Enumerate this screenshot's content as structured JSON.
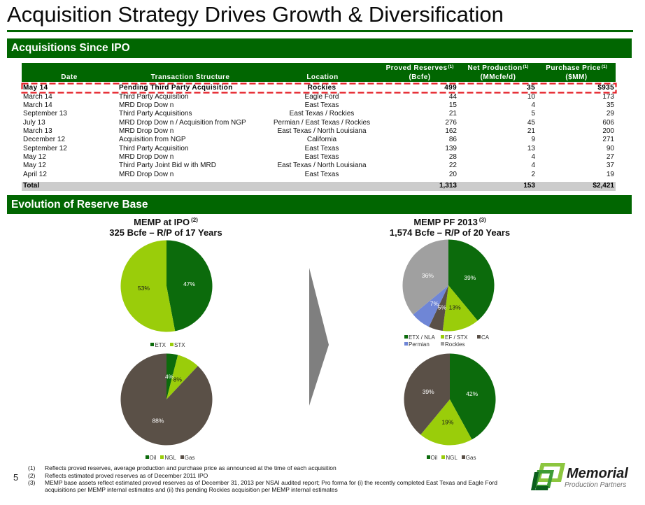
{
  "theme": {
    "primary_green": "#016601",
    "highlight_border": "#e41e26",
    "total_row_bg": "#cccccc",
    "arrow": "#7f7f7f"
  },
  "slide": {
    "title": "Acquisition Strategy Drives Growth & Diversification",
    "page_number": "5"
  },
  "acquisitions": {
    "section_title": "Acquisitions Since IPO",
    "columns": [
      {
        "line1": "",
        "sup": "",
        "line2": "Date"
      },
      {
        "line1": "",
        "sup": "",
        "line2": "Transaction Structure"
      },
      {
        "line1": "",
        "sup": "",
        "line2": "Location"
      },
      {
        "line1": "Proved Reserves",
        "sup": "(1)",
        "line2": "(Bcfe)"
      },
      {
        "line1": "Net Production",
        "sup": "(1)",
        "line2": "(MMcfe/d)"
      },
      {
        "line1": "Purchase Price",
        "sup": "(1)",
        "line2": "($MM)"
      }
    ],
    "rows": [
      {
        "date": "May 14",
        "structure": "Pending Third Party Acquisition",
        "location": "Rockies",
        "proved_reserves_bcfe": "499",
        "net_production_mmcfed": "35",
        "purchase_price_mm": "$935",
        "highlighted": true
      },
      {
        "date": "March 14",
        "structure": "Third Party Acquisition",
        "location": "Eagle Ford",
        "proved_reserves_bcfe": "44",
        "net_production_mmcfed": "10",
        "purchase_price_mm": "173"
      },
      {
        "date": "March 14",
        "structure": "MRD Drop Dow n",
        "location": "East Texas",
        "proved_reserves_bcfe": "15",
        "net_production_mmcfed": "4",
        "purchase_price_mm": "35"
      },
      {
        "date": "September 13",
        "structure": "Third Party Acquisitions",
        "location": "East Texas / Rockies",
        "proved_reserves_bcfe": "21",
        "net_production_mmcfed": "5",
        "purchase_price_mm": "29"
      },
      {
        "date": "July 13",
        "structure": "MRD Drop Dow n / Acquisition from NGP",
        "location": "Permian / East Texas / Rockies",
        "proved_reserves_bcfe": "276",
        "net_production_mmcfed": "45",
        "purchase_price_mm": "606"
      },
      {
        "date": "March 13",
        "structure": "MRD Drop Dow n",
        "location": "East Texas / North Louisiana",
        "proved_reserves_bcfe": "162",
        "net_production_mmcfed": "21",
        "purchase_price_mm": "200"
      },
      {
        "date": "December 12",
        "structure": "Acquisition from NGP",
        "location": "California",
        "proved_reserves_bcfe": "86",
        "net_production_mmcfed": "9",
        "purchase_price_mm": "271"
      },
      {
        "date": "September 12",
        "structure": "Third Party Acquisition",
        "location": "East Texas",
        "proved_reserves_bcfe": "139",
        "net_production_mmcfed": "13",
        "purchase_price_mm": "90"
      },
      {
        "date": "May 12",
        "structure": "MRD Drop Dow n",
        "location": "East Texas",
        "proved_reserves_bcfe": "28",
        "net_production_mmcfed": "4",
        "purchase_price_mm": "27"
      },
      {
        "date": "May 12",
        "structure": "Third Party Joint Bid w ith MRD",
        "location": "East Texas / North Louisiana",
        "proved_reserves_bcfe": "22",
        "net_production_mmcfed": "4",
        "purchase_price_mm": "37"
      },
      {
        "date": "April 12",
        "structure": "MRD Drop Dow n",
        "location": "East Texas",
        "proved_reserves_bcfe": "20",
        "net_production_mmcfed": "2",
        "purchase_price_mm": "19"
      }
    ],
    "total": {
      "label": "Total",
      "proved_reserves_bcfe": "1,313",
      "net_production_mmcfed": "153",
      "purchase_price_mm": "$2,421"
    }
  },
  "reserve_base": {
    "section_title": "Evolution of Reserve Base",
    "panels": [
      {
        "title": "MEMP at IPO",
        "sup": "(2)",
        "subtitle": "325 Bcfe – R/P of 17 Years"
      },
      {
        "title": "MEMP PF 2013",
        "sup": "(3)",
        "subtitle": "1,574 Bcfe – R/P of 20 Years"
      }
    ]
  },
  "chart_data": [
    {
      "type": "pie",
      "title": "MEMP at IPO (2)",
      "subtitle": "325 Bcfe – R/P of 17 Years",
      "categories": [
        "ETX",
        "STX"
      ],
      "values": [
        47,
        53
      ],
      "labels": [
        "47%",
        "53%"
      ],
      "colors": [
        "#0c6b0c",
        "#9acd0a"
      ],
      "label_colors": [
        "#ffffff",
        "#1a1a1a"
      ],
      "legend": "bottom"
    },
    {
      "type": "pie",
      "title": "MEMP at IPO (2)",
      "subtitle": "325 Bcfe – R/P of 17 Years",
      "categories": [
        "Oil",
        "NGL",
        "Gas"
      ],
      "values": [
        4,
        8,
        88
      ],
      "labels": [
        "4%",
        "8%",
        "88%"
      ],
      "colors": [
        "#0c6b0c",
        "#9acd0a",
        "#5a5047"
      ],
      "label_colors": [
        "#ffffff",
        "#1a1a1a",
        "#ffffff"
      ],
      "legend": "bottom"
    },
    {
      "type": "pie",
      "title": "MEMP PF 2013 (3)",
      "subtitle": "1,574 Bcfe – R/P of 20 Years",
      "categories": [
        "ETX / NLA",
        "EF / STX",
        "CA",
        "Permian",
        "Rockies"
      ],
      "values": [
        39,
        13,
        5,
        7,
        36
      ],
      "labels": [
        "39%",
        "13%",
        "5%",
        "7%",
        "36%"
      ],
      "colors": [
        "#0c6b0c",
        "#9acd0a",
        "#5a5047",
        "#6f86d6",
        "#a0a0a0"
      ],
      "label_colors": [
        "#ffffff",
        "#1a1a1a",
        "#ffffff",
        "#ffffff",
        "#ffffff"
      ],
      "legend": "bottom"
    },
    {
      "type": "pie",
      "title": "MEMP PF 2013 (3)",
      "subtitle": "1,574 Bcfe – R/P of 20 Years",
      "categories": [
        "Oil",
        "NGL",
        "Gas"
      ],
      "values": [
        42,
        19,
        39
      ],
      "labels": [
        "42%",
        "19%",
        "39%"
      ],
      "colors": [
        "#0c6b0c",
        "#9acd0a",
        "#5a5047"
      ],
      "label_colors": [
        "#ffffff",
        "#1a1a1a",
        "#ffffff"
      ],
      "legend": "bottom"
    }
  ],
  "footnotes": [
    {
      "marker": "(1)",
      "text_lines": [
        "Reflects proved reserves, average production and purchase price as announced at the time of each acquisition"
      ]
    },
    {
      "marker": "(2)",
      "text_lines": [
        "Reflects estimated proved reserves as of December 2011 IPO"
      ]
    },
    {
      "marker": "(3)",
      "text_lines": [
        "MEMP base assets reflect estimated proved reserves as of December 31, 2013 per NSAI audited report; Pro forma for (i) the recently completed East Texas and Eagle Ford",
        "acquisitions per MEMP internal estimates and (ii) this pending Rockies acquisition per MEMP internal estimates"
      ]
    }
  ],
  "logo": {
    "name": "Memorial",
    "tagline": "Production Partners"
  }
}
